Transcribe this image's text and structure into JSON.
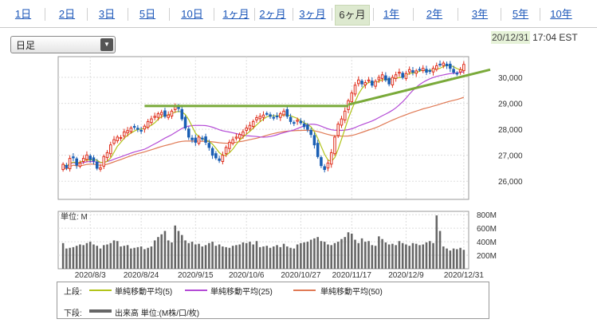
{
  "tabs": [
    {
      "label": "1日",
      "active": false
    },
    {
      "label": "2日",
      "active": false
    },
    {
      "label": "3日",
      "active": false
    },
    {
      "label": "5日",
      "active": false
    },
    {
      "label": "10日",
      "active": false
    },
    {
      "label": "1ヶ月",
      "active": false
    },
    {
      "label": "2ヶ月",
      "active": false
    },
    {
      "label": "3ヶ月",
      "active": false
    },
    {
      "label": "6ヶ月",
      "active": true
    },
    {
      "label": "1年",
      "active": false
    },
    {
      "label": "2年",
      "active": false
    },
    {
      "label": "3年",
      "active": false
    },
    {
      "label": "5年",
      "active": false
    },
    {
      "label": "10年",
      "active": false
    }
  ],
  "period_select": {
    "value": "日足"
  },
  "timestamp": {
    "date": "20/12/31",
    "time": "17:04 EST"
  },
  "chart_data": {
    "type": "candlestick",
    "price_yticks": [
      "30,000",
      "29,000",
      "28,000",
      "27,000",
      "26,000"
    ],
    "price_ytick_values": [
      30000,
      29000,
      28000,
      27000,
      26000
    ],
    "volume_label": "単位: M",
    "volume_yticks": [
      "800M",
      "600M",
      "400M",
      "200M"
    ],
    "volume_ytick_values": [
      800,
      600,
      400,
      200
    ],
    "xticks": [
      "2020/8/3",
      "2020/8/24",
      "2020/9/15",
      "2020/10/6",
      "2020/10/27",
      "2020/11/17",
      "2020/12/9",
      "2020/12/31"
    ],
    "price_range": [
      25300,
      30800
    ],
    "volume_range": [
      0,
      850
    ],
    "close": [
      26650,
      26520,
      26880,
      26900,
      26620,
      26700,
      26880,
      27010,
      26840,
      26780,
      26500,
      26520,
      26950,
      27100,
      27400,
      27600,
      27700,
      27680,
      27900,
      27950,
      28050,
      28080,
      28000,
      27950,
      28120,
      28300,
      28400,
      28500,
      28600,
      28650,
      28500,
      28550,
      28700,
      28900,
      28800,
      28400,
      28050,
      27700,
      27600,
      27500,
      27700,
      27650,
      27500,
      27300,
      27000,
      26900,
      26800,
      27000,
      27300,
      27500,
      27600,
      27700,
      27800,
      27900,
      28050,
      28150,
      28300,
      28450,
      28500,
      28550,
      28600,
      28500,
      28450,
      28500,
      28600,
      28700,
      28500,
      28300,
      28250,
      28350,
      28250,
      28100,
      28000,
      27800,
      27400,
      26950,
      26600,
      26450,
      26700,
      27100,
      27700,
      28200,
      28400,
      28700,
      29100,
      29400,
      29700,
      29900,
      29750,
      29800,
      29900,
      29700,
      29850,
      30000,
      30100,
      29900,
      29750,
      30000,
      30100,
      30200,
      30000,
      30150,
      30300,
      30200,
      30250,
      30300,
      30350,
      30200,
      30250,
      30350,
      30450,
      30500,
      30550,
      30450,
      30350,
      30200,
      30150,
      30300,
      30500
    ],
    "volume": [
      380,
      300,
      310,
      320,
      340,
      360,
      350,
      380,
      400,
      360,
      340,
      300,
      350,
      360,
      380,
      420,
      410,
      330,
      340,
      350,
      300,
      310,
      320,
      330,
      290,
      310,
      330,
      420,
      470,
      510,
      560,
      420,
      390,
      640,
      560,
      500,
      420,
      380,
      400,
      360,
      370,
      330,
      350,
      380,
      400,
      340,
      360,
      330,
      320,
      310,
      340,
      350,
      360,
      390,
      380,
      400,
      360,
      410,
      320,
      330,
      340,
      310,
      330,
      350,
      320,
      370,
      330,
      310,
      300,
      360,
      380,
      390,
      400,
      430,
      450,
      470,
      410,
      400,
      360,
      350,
      380,
      400,
      440,
      470,
      540,
      520,
      430,
      380,
      450,
      400,
      410,
      350,
      340,
      480,
      440,
      390,
      360,
      370,
      350,
      410,
      380,
      360,
      340,
      380,
      370,
      350,
      360,
      390,
      410,
      380,
      790,
      560,
      330,
      300,
      270,
      300,
      290,
      310,
      280
    ],
    "moving_averages": [
      {
        "name": "単純移動平均(5)",
        "color": "#b2c41a"
      },
      {
        "name": "単純移動平均(25)",
        "color": "#b44bd6"
      },
      {
        "name": "単純移動平均(50)",
        "color": "#e07a55"
      }
    ],
    "legend_upper_label": "上段:",
    "legend_lower_label": "下段:",
    "volume_series_name": "出来高 単位:(M株/口/枚)",
    "volume_series_color": "#666666",
    "trendlines_color": "#7aaa3a"
  }
}
